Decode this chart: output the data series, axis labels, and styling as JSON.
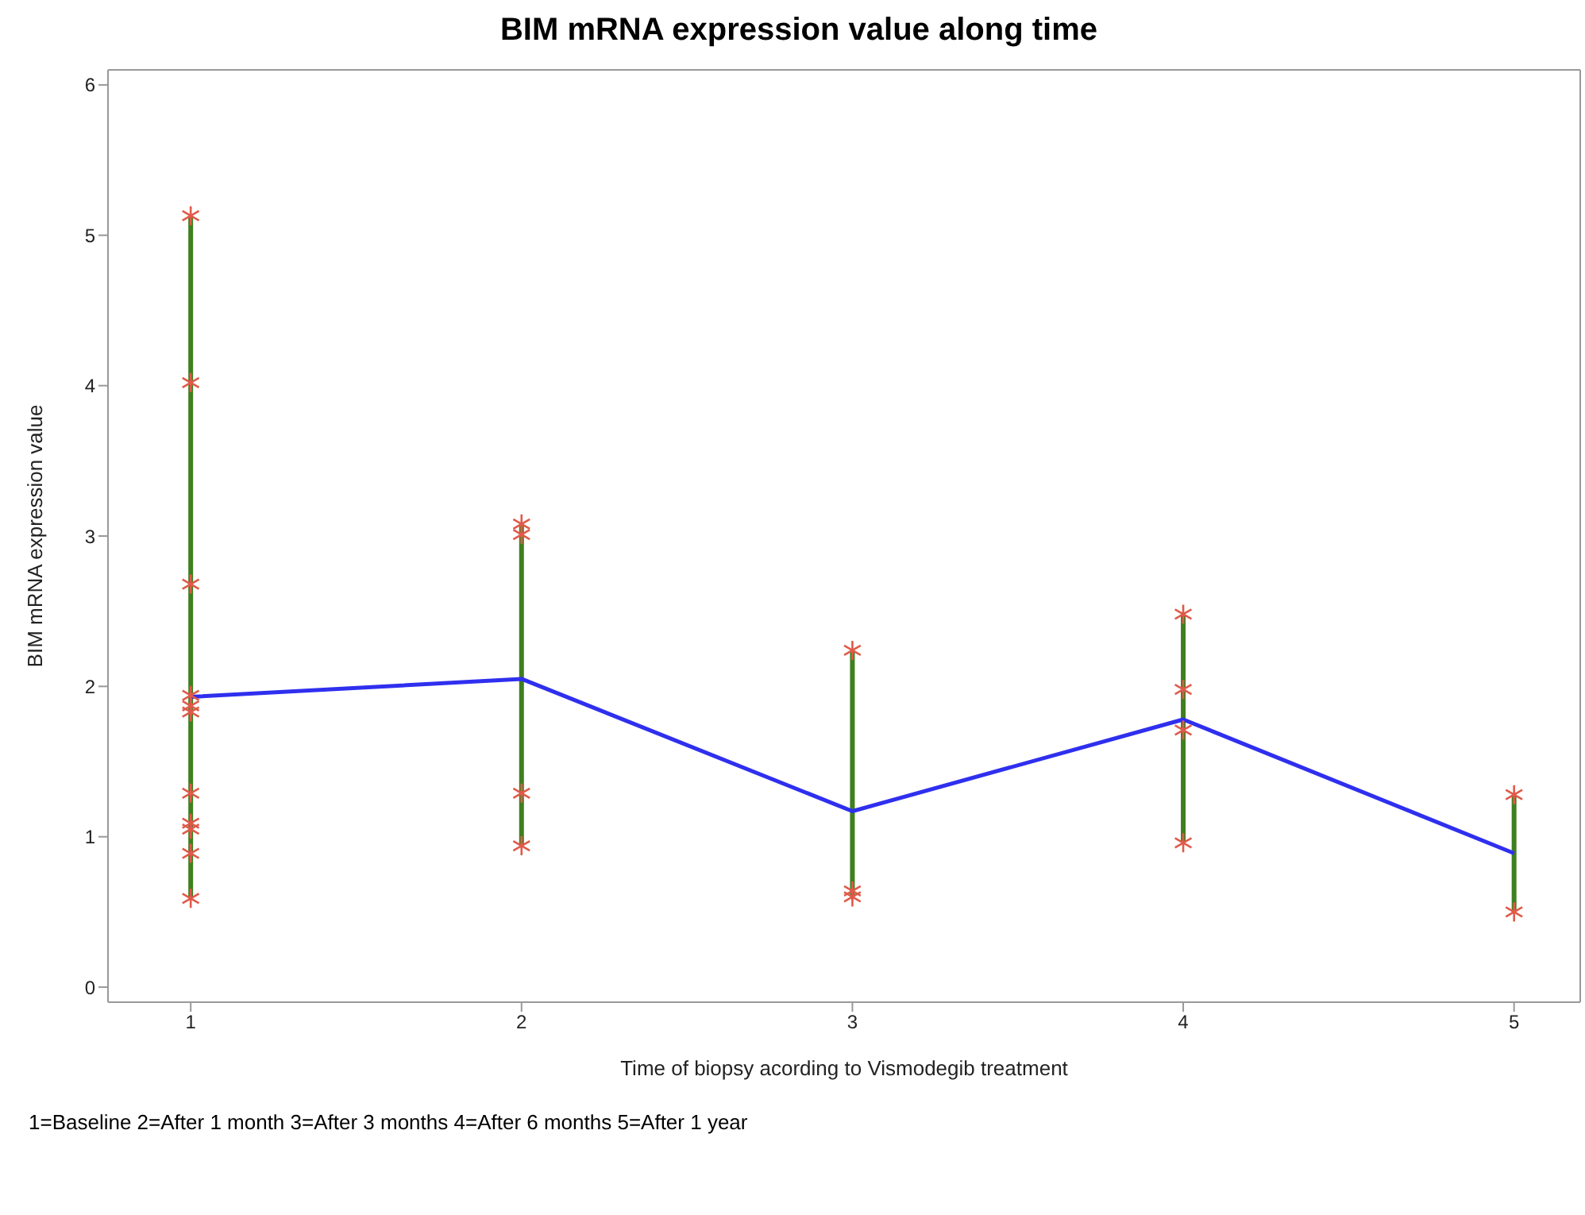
{
  "chart_data": {
    "type": "line",
    "title": "BIM mRNA expression value along time",
    "xlabel": "Time of biopsy acording to Vismodegib treatment",
    "ylabel": "BIM mRNA expression value",
    "annotations": [
      "1=Baseline 2=After 1 month 3=After 3 months 4=After 6 months 5=After 1 year"
    ],
    "x": [
      1,
      2,
      3,
      4,
      5
    ],
    "series": [
      {
        "color": "#3f7f1f",
        "x": [
          1,
          1
        ],
        "values": [
          0.59,
          5.13
        ]
      },
      {
        "color": "#3f7f1f",
        "x": [
          2,
          2
        ],
        "values": [
          0.94,
          3.08
        ]
      },
      {
        "color": "#3f7f1f",
        "x": [
          3,
          3
        ],
        "values": [
          0.6,
          2.24
        ]
      },
      {
        "color": "#3f7f1f",
        "x": [
          4,
          4
        ],
        "values": [
          0.96,
          2.48
        ]
      },
      {
        "color": "#3f7f1f",
        "x": [
          5,
          5
        ],
        "values": [
          0.5,
          1.28
        ]
      },
      {
        "color": "#2f2fef",
        "values": [
          1.93,
          2.05,
          1.17,
          1.78,
          0.89
        ]
      },
      {
        "type": "scatter",
        "color": "#e05a4a",
        "marker": "cross",
        "x": [
          1,
          1,
          1,
          1,
          1,
          1,
          1,
          1,
          1,
          1,
          1,
          2,
          2,
          2,
          2,
          3,
          3,
          3,
          4,
          4,
          4,
          4,
          5,
          5
        ],
        "values": [
          5.13,
          4.02,
          2.68,
          1.94,
          1.87,
          1.83,
          1.29,
          1.09,
          1.05,
          0.89,
          0.59,
          3.08,
          3.01,
          1.29,
          0.94,
          2.24,
          0.64,
          0.6,
          2.48,
          1.98,
          1.71,
          0.96,
          1.28,
          0.5
        ]
      }
    ],
    "xlim": [
      0.75,
      5.2
    ],
    "xticks": [
      1,
      2,
      3,
      4,
      5
    ],
    "ylim": [
      -0.1,
      6.1
    ],
    "yticks": [
      0,
      1,
      2,
      3,
      4,
      5,
      6
    ],
    "marker": "none"
  }
}
